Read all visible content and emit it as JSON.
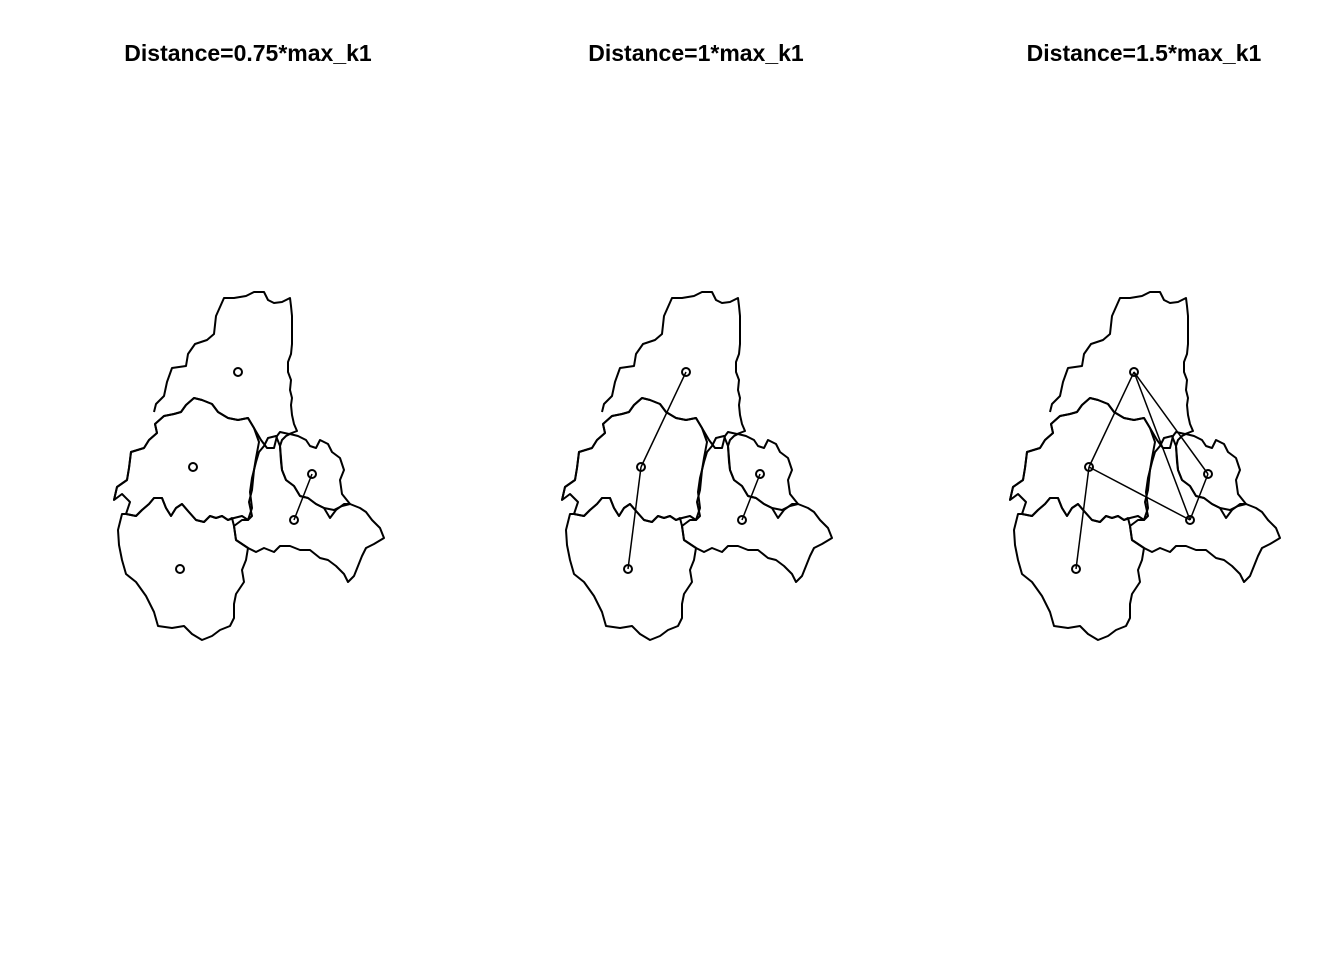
{
  "panels": [
    {
      "title": "Distance=0.75*max_k1",
      "edges": [
        [
          3,
          4
        ]
      ]
    },
    {
      "title": "Distance=1*max_k1",
      "edges": [
        [
          0,
          1
        ],
        [
          1,
          2
        ],
        [
          3,
          4
        ]
      ]
    },
    {
      "title": "Distance=1.5*max_k1",
      "edges": [
        [
          0,
          1
        ],
        [
          0,
          3
        ],
        [
          0,
          4
        ],
        [
          1,
          2
        ],
        [
          1,
          4
        ],
        [
          3,
          4
        ]
      ]
    }
  ],
  "nodes": [
    "north",
    "centre-west",
    "south-west",
    "east",
    "south-east"
  ]
}
